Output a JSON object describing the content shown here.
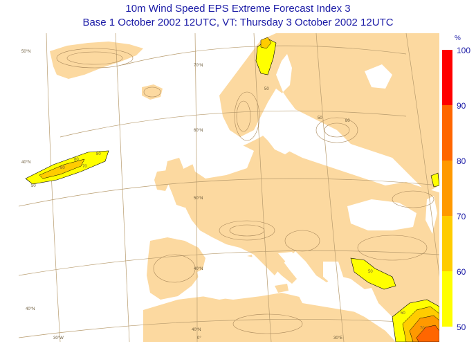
{
  "title_line1": "10m Wind Speed EPS Extreme Forecast Index 3",
  "title_line2": "Base 1 October 2002 12UTC, VT: Thursday 3 October 2002 12UTC",
  "legend": {
    "unit": "%",
    "ticks": [
      "100",
      "90",
      "80",
      "70",
      "60",
      "50"
    ],
    "bands": [
      {
        "from": 50,
        "to": 60,
        "color": "#ffff00"
      },
      {
        "from": 60,
        "to": 70,
        "color": "#ffcc00"
      },
      {
        "from": 70,
        "to": 80,
        "color": "#ff9900"
      },
      {
        "from": 80,
        "to": 90,
        "color": "#ff6600"
      },
      {
        "from": 90,
        "to": 100,
        "color": "#ff0000"
      }
    ]
  },
  "map": {
    "land_color": "#fcd9a0",
    "sea_color": "#ffffff",
    "graticule_labels": {
      "lat": [
        "50°N",
        "40°N",
        "70°N",
        "60°N",
        "50°N",
        "40°N",
        "40°N",
        "40°N"
      ],
      "lon": [
        "30°W",
        "0°",
        "30°E"
      ]
    },
    "contour_labels": [
      "50",
      "80",
      "80",
      "80",
      "70",
      "50",
      "80",
      "50",
      "50",
      "70",
      "50"
    ]
  }
}
